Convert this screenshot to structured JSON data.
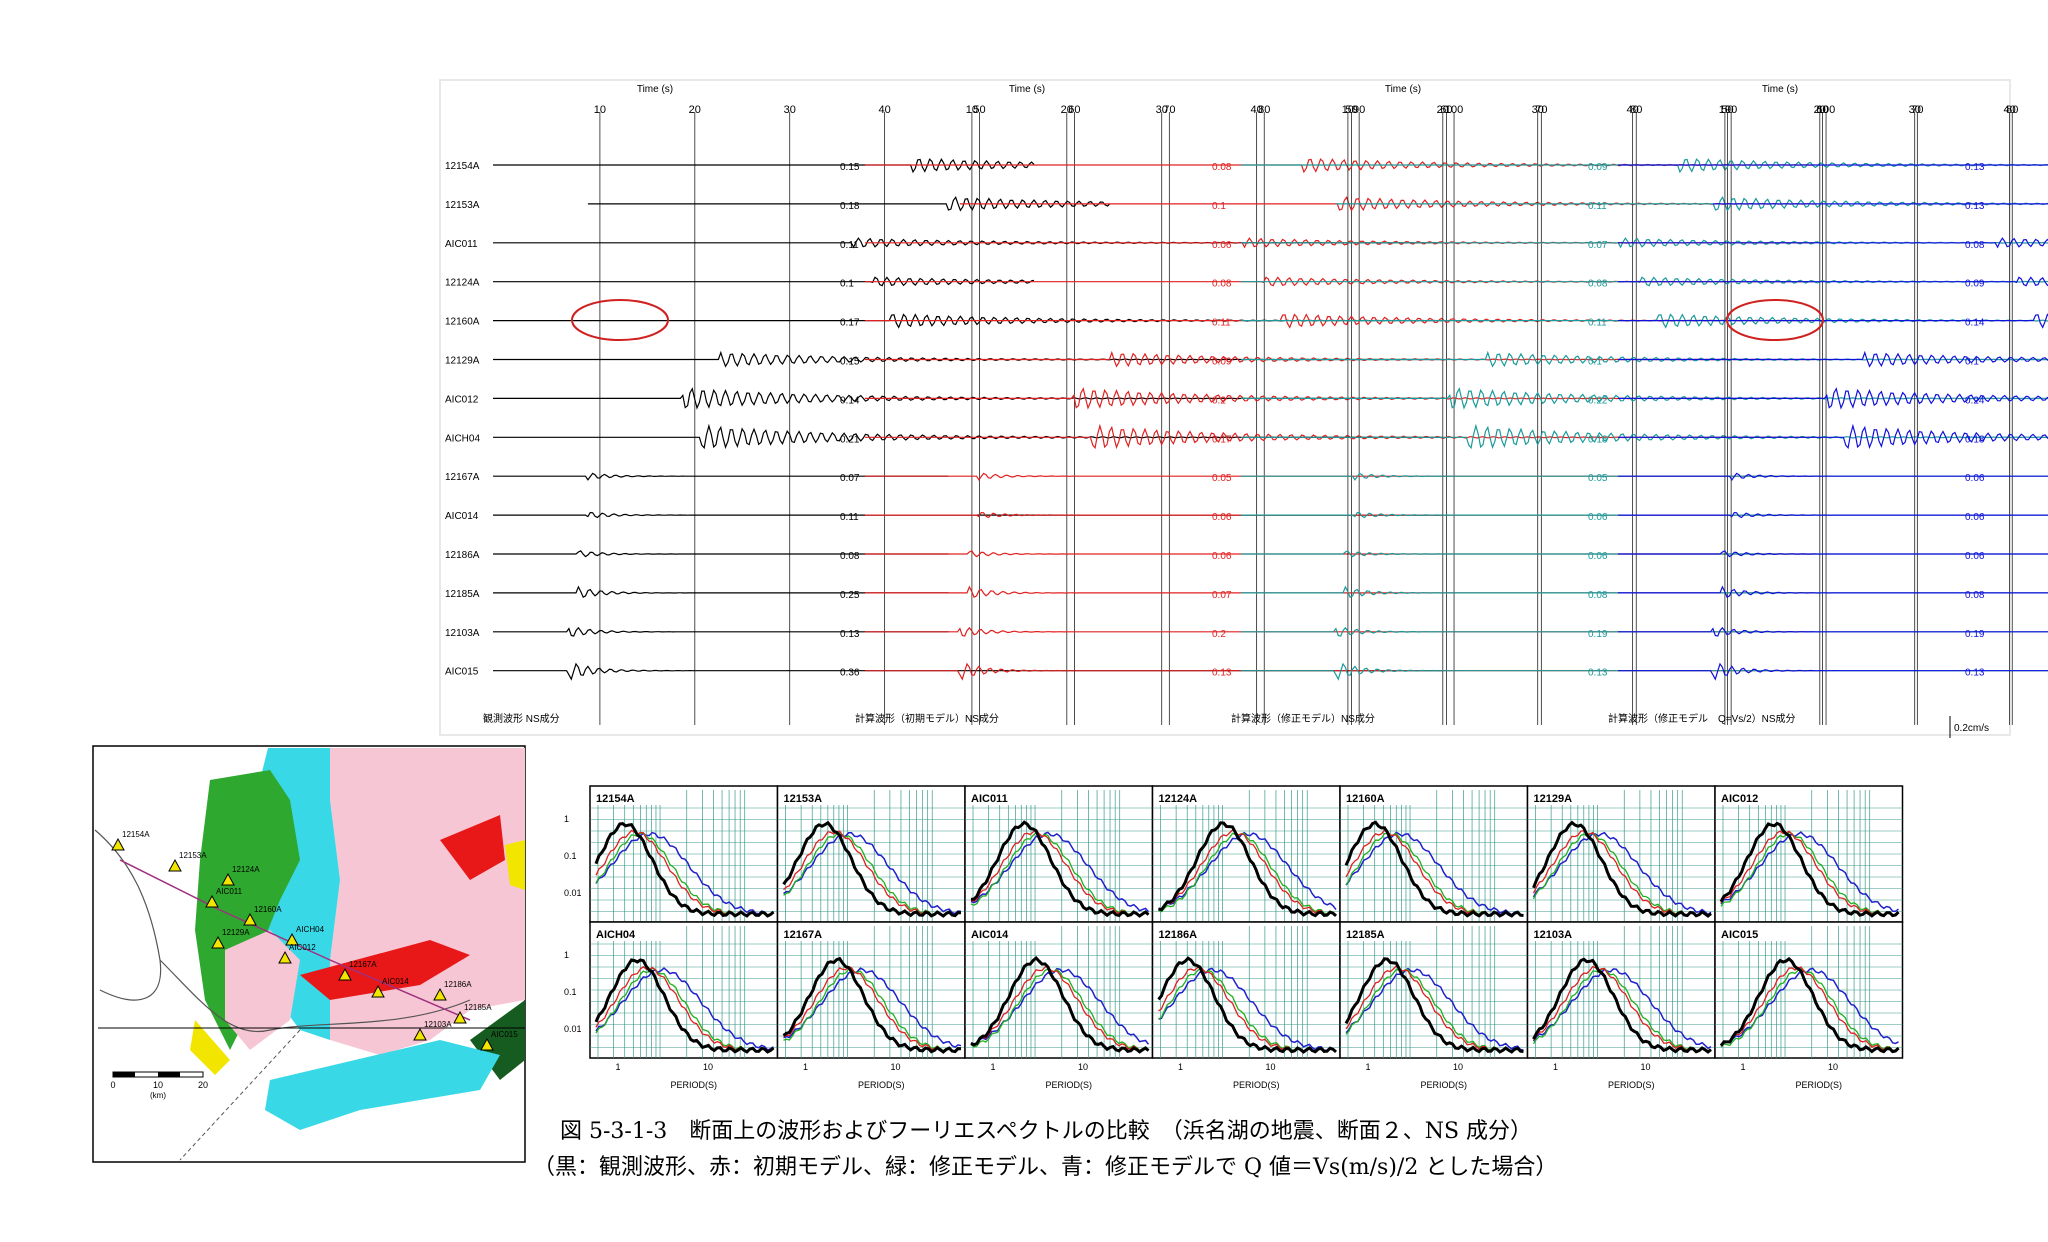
{
  "waveforms": {
    "time_axis_title": "Time (s)",
    "time_ticks": [
      "10",
      "20",
      "30",
      "40",
      "50",
      "60",
      "70",
      "80",
      "90",
      "100"
    ],
    "stations": [
      "12154A",
      "12153A",
      "AIC011",
      "12124A",
      "12160A",
      "12129A",
      "AIC012",
      "AICH04",
      "12167A",
      "AIC014",
      "12186A",
      "12185A",
      "12103A",
      "AIC015"
    ],
    "panels": [
      {
        "caption": "観測波形 NS成分",
        "color": "#000000",
        "amps": [
          "0.15",
          "0.18",
          "0.11",
          "0.1",
          "0.17",
          "0.15",
          "0.14",
          "0.21",
          "0.07",
          "0.11",
          "0.08",
          "0.25",
          "0.13",
          "0.36"
        ]
      },
      {
        "caption": "計算波形（初期モデル）NS成分",
        "color": "#e02020",
        "amps": [
          "0.08",
          "0.1",
          "0.06",
          "0.08",
          "0.11",
          "0.09",
          "0.2",
          "0.17",
          "0.05",
          "0.06",
          "0.06",
          "0.07",
          "0.2",
          "0.13"
        ]
      },
      {
        "caption": "計算波形（修正モデル）NS成分",
        "color": "#1a9a9a",
        "amps": [
          "0.09",
          "0.11",
          "0.07",
          "0.08",
          "0.11",
          "0.1",
          "0.22",
          "0.18",
          "0.05",
          "0.06",
          "0.06",
          "0.08",
          "0.19",
          "0.13"
        ]
      },
      {
        "caption": "計算波形（修正モデル　Q=Vs/2）NS成分",
        "color": "#1010dd",
        "amps": [
          "0.13",
          "0.13",
          "0.08",
          "0.09",
          "0.14",
          "0.1",
          "0.24",
          "0.18",
          "0.06",
          "0.06",
          "0.06",
          "0.08",
          "0.19",
          "0.13"
        ]
      }
    ],
    "scale_label": "0.2cm/s"
  },
  "map": {
    "stations": [
      "12154A",
      "12153A",
      "12124A",
      "AIC011",
      "12160A",
      "12129A",
      "AICH04",
      "AIC012",
      "12167A",
      "AIC014",
      "12186A",
      "12185A",
      "12103A",
      "AIC015"
    ],
    "scale_ticks": [
      "0",
      "10",
      "20"
    ],
    "scale_unit": "(km)"
  },
  "spectra": {
    "row1": [
      "12154A",
      "12153A",
      "AIC011",
      "12124A",
      "12160A",
      "12129A",
      "AIC012"
    ],
    "row2": [
      "AICH04",
      "12167A",
      "AIC014",
      "12186A",
      "12185A",
      "12103A",
      "AIC015"
    ],
    "y_ticks": [
      "1",
      "0.1",
      "0.01"
    ],
    "x_ticks": [
      "1",
      "10"
    ],
    "x_label": "PERIOD(S)",
    "series_colors": {
      "observed": "#000000",
      "initial": "#e02020",
      "revised": "#20b020",
      "revised_q": "#2020cc"
    }
  },
  "caption": {
    "line1": "図 5-3-1-3　断面上の波形およびフーリエスペクトルの比較　（浜名湖の地震、断面２、NS 成分）",
    "line2": "（黒：観測波形、赤：初期モデル、緑：修正モデル、青：修正モデルで Q 値＝Vs(m/s)/2 とした場合）"
  }
}
